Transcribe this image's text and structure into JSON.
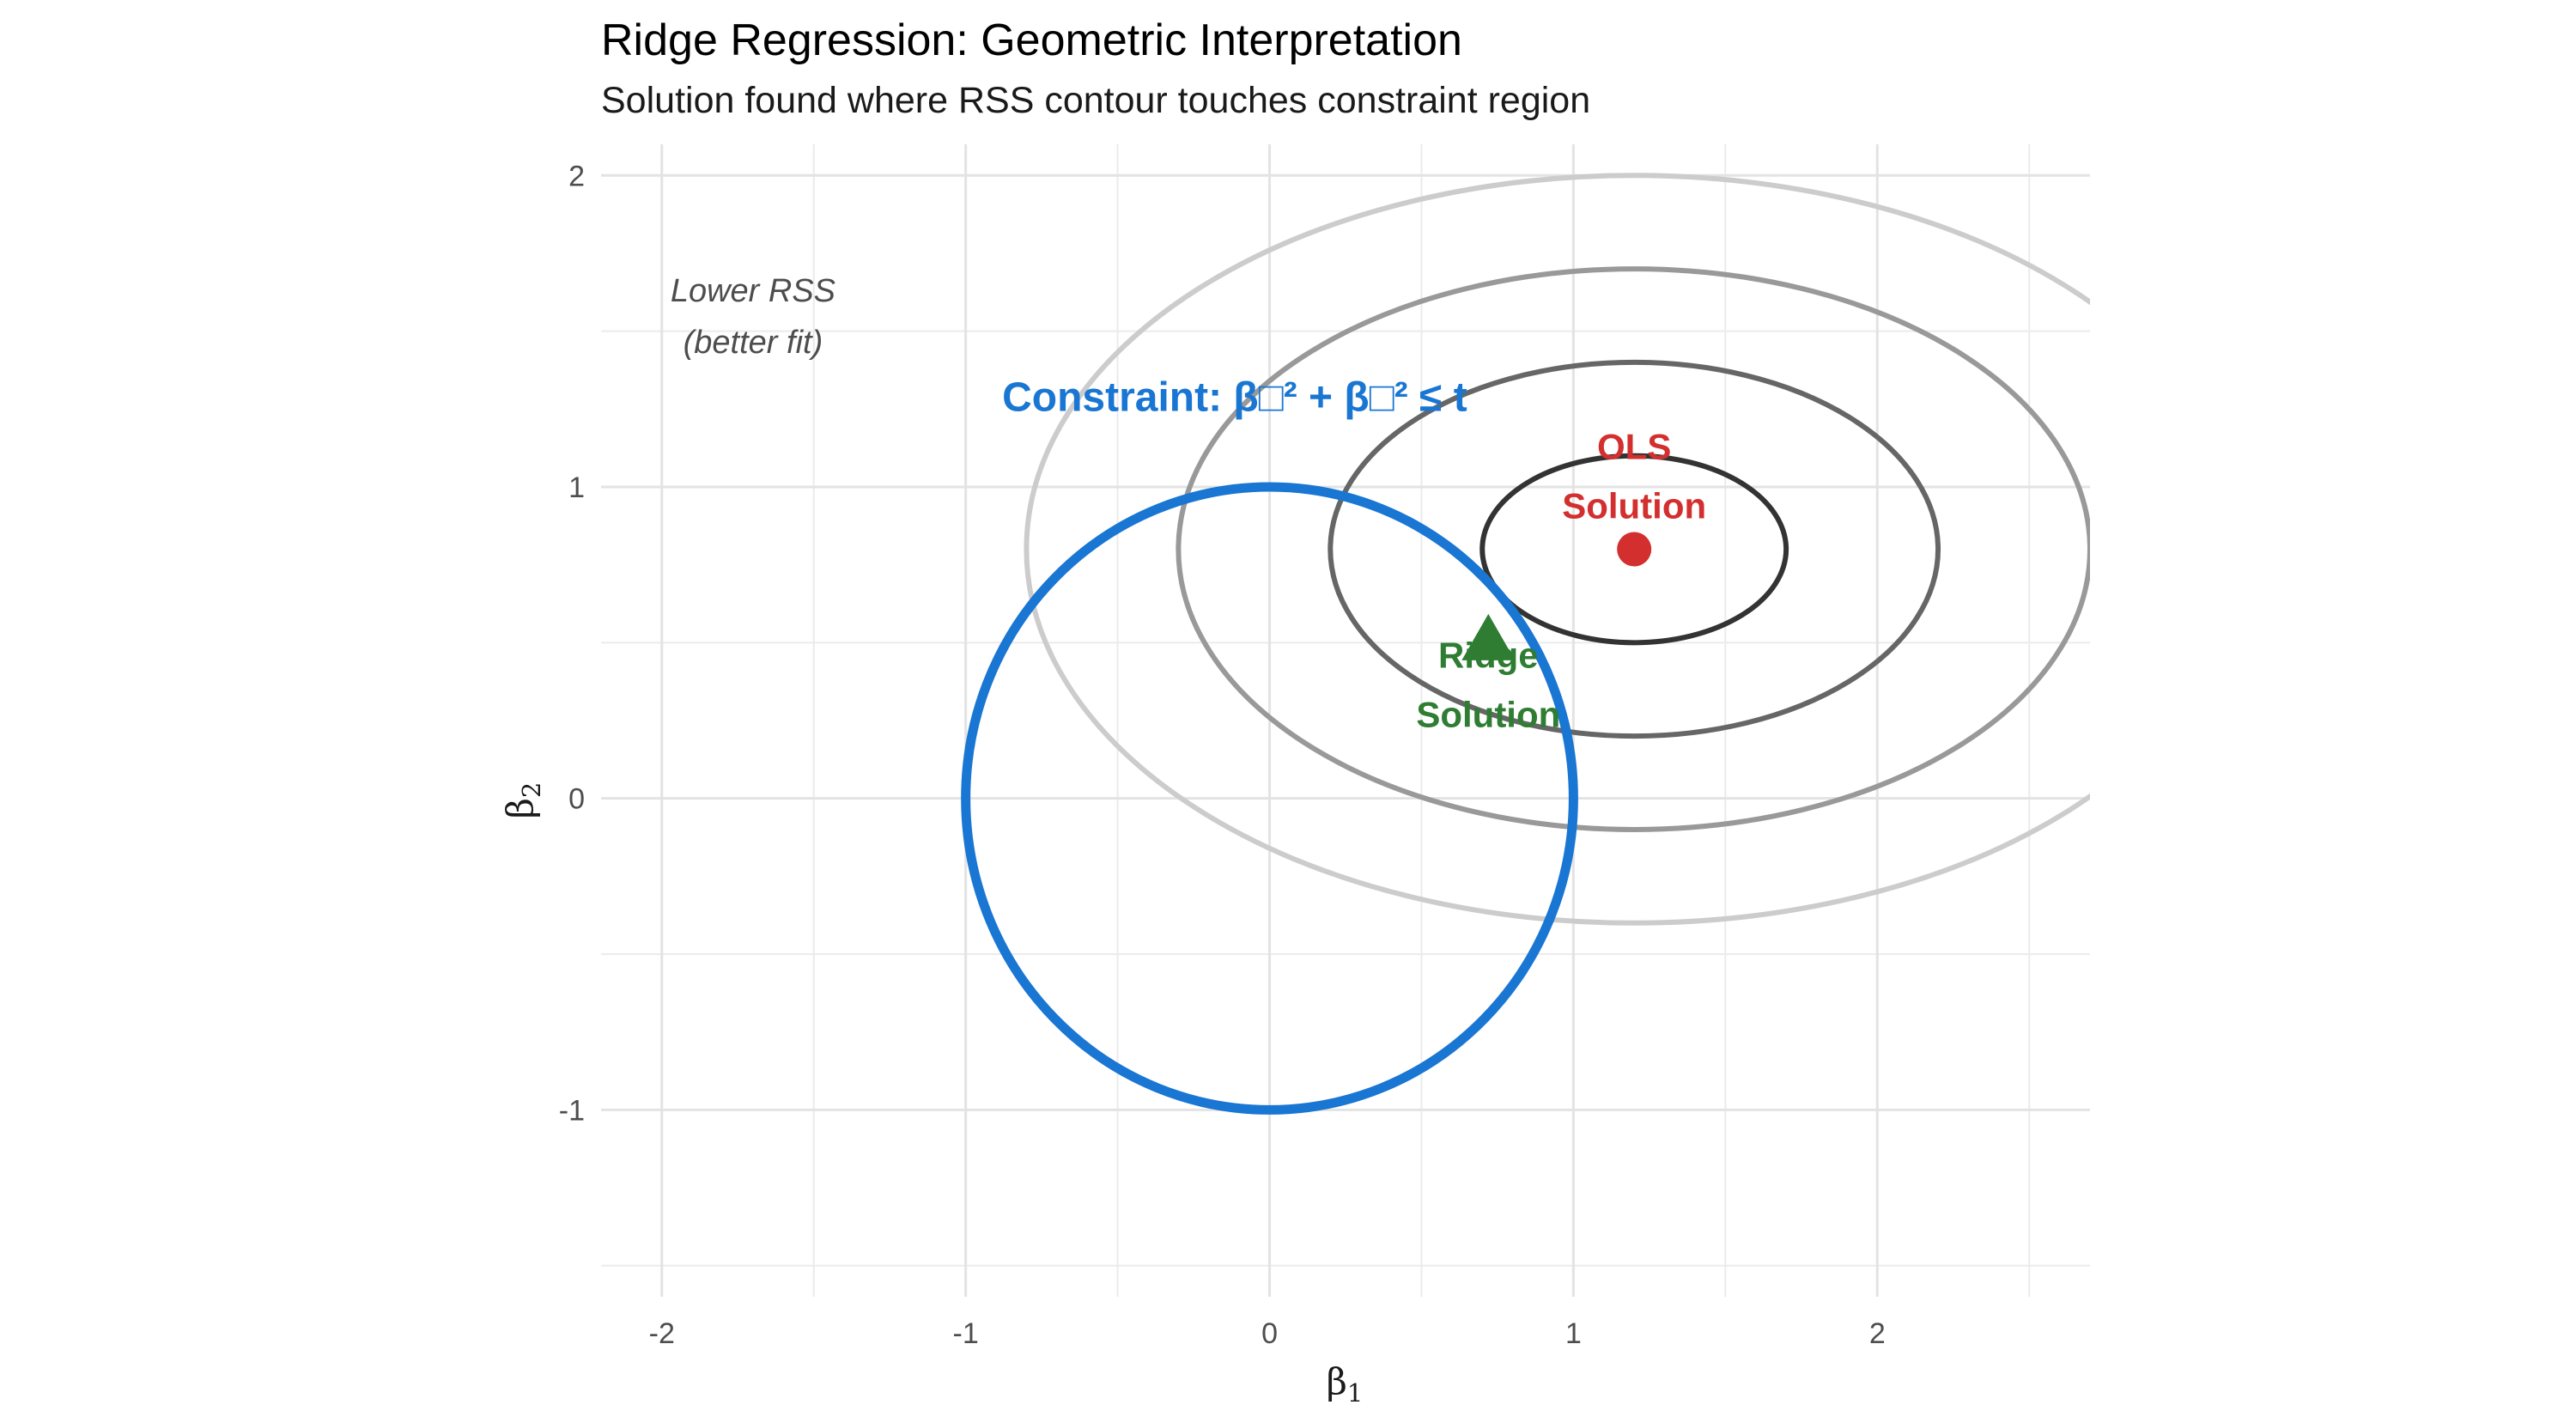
{
  "chart_data": {
    "type": "scatter",
    "title": "Ridge Regression: Geometric Interpretation",
    "subtitle": "Solution found where RSS contour touches constraint region",
    "xlabel": "β",
    "xlabel_sub": "1",
    "ylabel": "β",
    "ylabel_sub": "2",
    "xlim": [
      -2.2,
      2.7
    ],
    "ylim": [
      -1.6,
      2.1
    ],
    "x_ticks": [
      -2,
      -1,
      0,
      1,
      2
    ],
    "x_tick_labels": [
      "-2",
      "-1",
      "0",
      "1",
      "2"
    ],
    "y_ticks": [
      -1,
      0,
      1,
      2
    ],
    "y_tick_labels": [
      "-1",
      "0",
      "1",
      "2"
    ],
    "grid": true,
    "constraint": {
      "center": [
        0,
        0
      ],
      "radius": 1,
      "color": "#1976d2"
    },
    "contours": [
      {
        "center": [
          1.2,
          0.8
        ],
        "rx": 0.5,
        "ry": 0.3,
        "color": "#333333"
      },
      {
        "center": [
          1.2,
          0.8
        ],
        "rx": 1.0,
        "ry": 0.6,
        "color": "#666666"
      },
      {
        "center": [
          1.2,
          0.8
        ],
        "rx": 1.5,
        "ry": 0.9,
        "color": "#999999"
      },
      {
        "center": [
          1.2,
          0.8
        ],
        "rx": 2.0,
        "ry": 1.2,
        "color": "#cccccc"
      }
    ],
    "points": [
      {
        "name": "OLS Solution",
        "x": 1.2,
        "y": 0.8,
        "shape": "circle",
        "color": "#d32f2f"
      },
      {
        "name": "Ridge Solution",
        "x": 0.72,
        "y": 0.5,
        "shape": "triangle",
        "color": "#2e7d32"
      }
    ],
    "annotations": [
      {
        "id": "lower-rss",
        "lines": [
          "Lower RSS",
          "(better fit)"
        ],
        "x": -1.7,
        "y": 1.55,
        "color": "#4d4d4d",
        "style": "italic"
      },
      {
        "id": "constraint-label",
        "lines": [
          "Constraint: β□² + β□² ≤ t"
        ],
        "x": -0.88,
        "y": 1.29,
        "color": "#1976d2",
        "style": "bold",
        "anchor": "start"
      },
      {
        "id": "ols-label",
        "lines": [
          "OLS",
          "Solution"
        ],
        "x": 1.2,
        "y": 1.035,
        "color": "#d32f2f",
        "style": "bold"
      },
      {
        "id": "ridge-label",
        "lines": [
          "Ridge",
          "Solution"
        ],
        "x": 0.72,
        "y": 0.365,
        "color": "#2e7d32",
        "style": "bold"
      }
    ]
  }
}
